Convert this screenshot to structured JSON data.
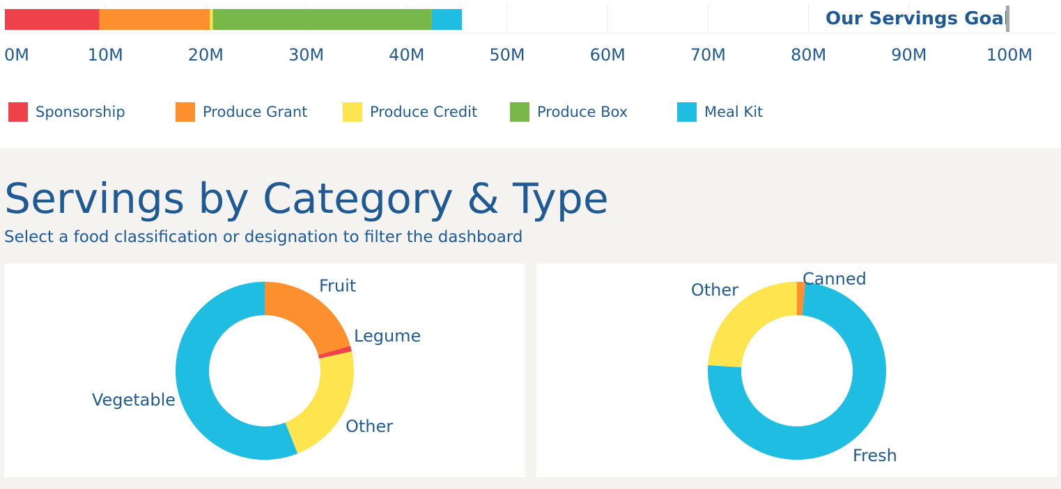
{
  "goal_label": "Our Servings Goal",
  "chart_data": [
    {
      "type": "bar",
      "orientation": "horizontal",
      "stacked": true,
      "series": [
        {
          "name": "Sponsorship",
          "value": 9.4,
          "color": "#ef4149"
        },
        {
          "name": "Produce Grant",
          "value": 11.0,
          "color": "#fd8f2e"
        },
        {
          "name": "Produce Credit",
          "value": 0.3,
          "color": "#fee44f"
        },
        {
          "name": "Produce Box",
          "value": 21.8,
          "color": "#78b84a"
        },
        {
          "name": "Meal Kit",
          "value": 3.0,
          "color": "#1fbde2"
        }
      ],
      "xlim": [
        0,
        100
      ],
      "ticks": [
        "0M",
        "10M",
        "20M",
        "30M",
        "40M",
        "50M",
        "60M",
        "70M",
        "80M",
        "90M",
        "100M"
      ],
      "goal": 100,
      "grid": true,
      "legend": "bottom"
    },
    {
      "type": "pie",
      "donut": true,
      "slices": [
        {
          "label": "Fruit",
          "value": 20.5,
          "color": "#fd8f2e"
        },
        {
          "label": "Legume",
          "value": 1.0,
          "color": "#ef4149"
        },
        {
          "label": "Other",
          "value": 22.5,
          "color": "#fee44f"
        },
        {
          "label": "Vegetable",
          "value": 56.0,
          "color": "#1fbde2"
        }
      ]
    },
    {
      "type": "pie",
      "donut": true,
      "slices": [
        {
          "label": "Canned",
          "value": 1.5,
          "color": "#fd8f2e"
        },
        {
          "label": "Fresh",
          "value": 74.5,
          "color": "#1fbde2"
        },
        {
          "label": "Other",
          "value": 24.0,
          "color": "#fee44f"
        }
      ]
    }
  ],
  "section": {
    "title": "Servings by Category & Type",
    "subtitle": "Select a food classification or designation to filter the dashboard"
  }
}
